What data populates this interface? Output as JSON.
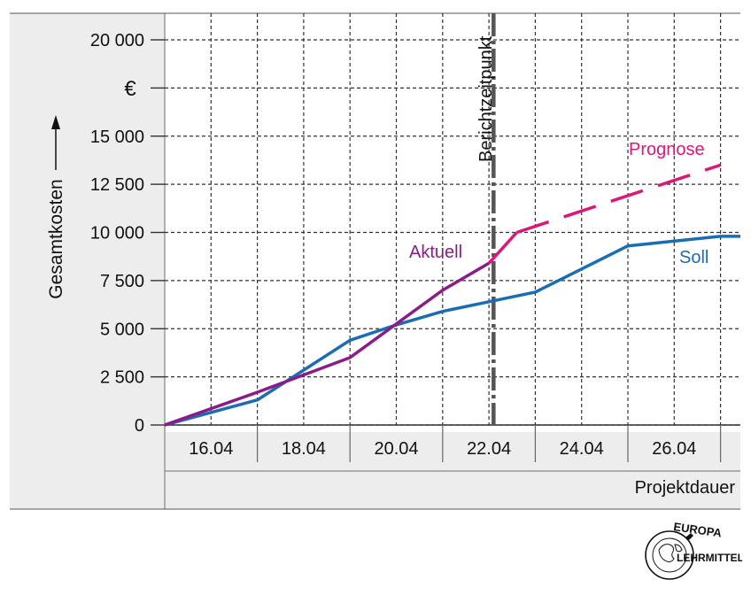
{
  "chart_data": {
    "type": "line",
    "ylabel": "Gesamtkosten",
    "yunit": "€",
    "xlabel": "Projektdauer",
    "ylim": [
      0,
      22000
    ],
    "x_tick_labels": [
      "16.04",
      "18.04",
      "20.04",
      "22.04",
      "24.04",
      "26.04"
    ],
    "y_ticks": [
      0,
      2500,
      5000,
      7500,
      10000,
      12500,
      15000,
      20000
    ],
    "y_tick_labels": [
      "0",
      "2 500",
      "5 000",
      "7 500",
      "10 000",
      "12 500",
      "15 000",
      "20 000"
    ],
    "grid": true,
    "report_date": {
      "x": 22.1,
      "label": "Berichtzeitpunkt"
    },
    "series": [
      {
        "name": "Soll",
        "color": "#1a6db3",
        "x": [
          15,
          17,
          19,
          20,
          21,
          22,
          23,
          25,
          27,
          27.5
        ],
        "y": [
          0,
          1300,
          4400,
          5200,
          5900,
          6400,
          6900,
          9300,
          9800,
          9800
        ]
      },
      {
        "name": "Aktuell",
        "color": "#8b1a8b",
        "x": [
          15,
          17,
          19,
          21,
          22
        ],
        "y": [
          0,
          1700,
          3500,
          7000,
          8400
        ]
      },
      {
        "name": "Prognose",
        "color": "#e0157a",
        "dashed": true,
        "x": [
          22.6,
          27
        ],
        "y": [
          10000,
          13500
        ]
      }
    ]
  },
  "logo": {
    "top": "EUROPA",
    "right": "LEHRMITTEL"
  }
}
